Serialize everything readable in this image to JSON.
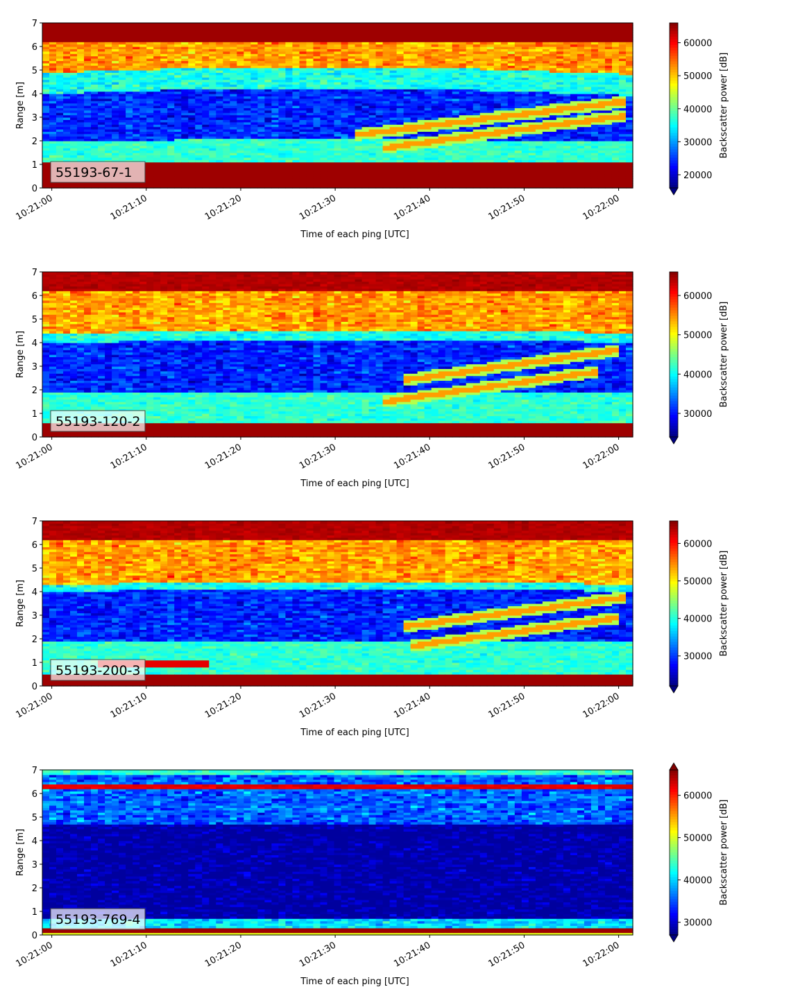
{
  "figure": {
    "xlabel": "Time of each ping [UTC]",
    "ylabel": "Range [m]",
    "colorbar_label": "Backscatter power [dB]",
    "colormap": "jet"
  },
  "chart_data": [
    {
      "type": "heatmap",
      "label": "55193-67-1",
      "xlabel": "Time of each ping [UTC]",
      "ylabel": "Range [m]",
      "x_ticks": [
        "10:21:00",
        "10:21:10",
        "10:21:20",
        "10:21:30",
        "10:21:40",
        "10:21:50",
        "10:22:00"
      ],
      "y_ticks": [
        0,
        1,
        2,
        3,
        4,
        5,
        6,
        7
      ],
      "ylim": [
        0,
        7
      ],
      "xlim_seconds": [
        -1,
        61.5
      ],
      "colorbar": {
        "label": "Backscatter power [dB]",
        "ticks": [
          20000,
          30000,
          40000,
          50000,
          60000
        ],
        "range": [
          16000,
          66000
        ],
        "extend": "min"
      },
      "features": {
        "bottom_band_top_m": 1.15,
        "low_cyan_band_m": [
          1.15,
          2.0
        ],
        "dark_zone_m": [
          2.0,
          4.0
        ],
        "upper_cyan_m": [
          4.0,
          4.9
        ],
        "surface_band_m": 6.3,
        "track_a": {
          "start_s": 32,
          "end_s": 61,
          "start_m": 2.25,
          "end_m": 3.7
        },
        "track_b": {
          "start_s": 35,
          "end_s": 61,
          "start_m": 1.7,
          "end_m": 3.1
        }
      }
    },
    {
      "type": "heatmap",
      "label": "55193-120-2",
      "xlabel": "Time of each ping [UTC]",
      "ylabel": "Range [m]",
      "x_ticks": [
        "10:21:00",
        "10:21:10",
        "10:21:20",
        "10:21:30",
        "10:21:40",
        "10:21:50",
        "10:22:00"
      ],
      "y_ticks": [
        0,
        1,
        2,
        3,
        4,
        5,
        6,
        7
      ],
      "ylim": [
        0,
        7
      ],
      "xlim_seconds": [
        -1,
        61.5
      ],
      "colorbar": {
        "label": "Backscatter power [dB]",
        "ticks": [
          30000,
          40000,
          50000,
          60000
        ],
        "range": [
          24000,
          66000
        ],
        "extend": "min"
      },
      "features": {
        "bottom_band_top_m": 0.6,
        "low_cyan_band_m": [
          0.6,
          1.9
        ],
        "dark_zone_m": [
          1.9,
          4.0
        ],
        "upper_cyan_m": [
          4.0,
          4.4
        ],
        "surface_band_m": 6.6,
        "track_a": {
          "start_s": 37,
          "end_s": 60,
          "start_m": 2.4,
          "end_m": 3.7
        },
        "track_b": {
          "start_s": 35,
          "end_s": 58,
          "start_m": 1.5,
          "end_m": 2.8
        }
      }
    },
    {
      "type": "heatmap",
      "label": "55193-200-3",
      "xlabel": "Time of each ping [UTC]",
      "ylabel": "Range [m]",
      "x_ticks": [
        "10:21:00",
        "10:21:10",
        "10:21:20",
        "10:21:30",
        "10:21:40",
        "10:21:50",
        "10:22:00"
      ],
      "y_ticks": [
        0,
        1,
        2,
        3,
        4,
        5,
        6,
        7
      ],
      "ylim": [
        0,
        7
      ],
      "xlim_seconds": [
        -1,
        61.5
      ],
      "colorbar": {
        "label": "Backscatter power [dB]",
        "ticks": [
          30000,
          40000,
          50000,
          60000
        ],
        "range": [
          22000,
          66000
        ],
        "extend": "min"
      },
      "features": {
        "bottom_band_top_m": 0.45,
        "low_cyan_band_m": [
          0.45,
          1.9
        ],
        "dark_zone_m": [
          1.9,
          4.0
        ],
        "upper_cyan_m": [
          4.0,
          4.3
        ],
        "surface_band_m": 6.5,
        "track_a": {
          "start_s": 37,
          "end_s": 61,
          "start_m": 2.5,
          "end_m": 3.8
        },
        "track_b": {
          "start_s": 38,
          "end_s": 60,
          "start_m": 1.7,
          "end_m": 2.9
        }
      }
    },
    {
      "type": "heatmap",
      "label": "55193-769-4",
      "xlabel": "Time of each ping [UTC]",
      "ylabel": "Range [m]",
      "x_ticks": [
        "10:21:00",
        "10:21:10",
        "10:21:20",
        "10:21:30",
        "10:21:40",
        "10:21:50",
        "10:22:00"
      ],
      "y_ticks": [
        0,
        1,
        2,
        3,
        4,
        5,
        6,
        7
      ],
      "ylim": [
        0,
        7
      ],
      "xlim_seconds": [
        -1,
        61.5
      ],
      "colorbar": {
        "label": "Backscatter power [dB]",
        "ticks": [
          30000,
          40000,
          50000,
          60000
        ],
        "range": [
          27000,
          66000
        ],
        "extend": "both"
      },
      "features": {
        "bottom_band_top_m": 0.3,
        "surface_line_m": 6.3,
        "noisy_upper_m": [
          4.7,
          7.0
        ],
        "dark_zone_m": [
          0.6,
          4.7
        ]
      }
    }
  ]
}
